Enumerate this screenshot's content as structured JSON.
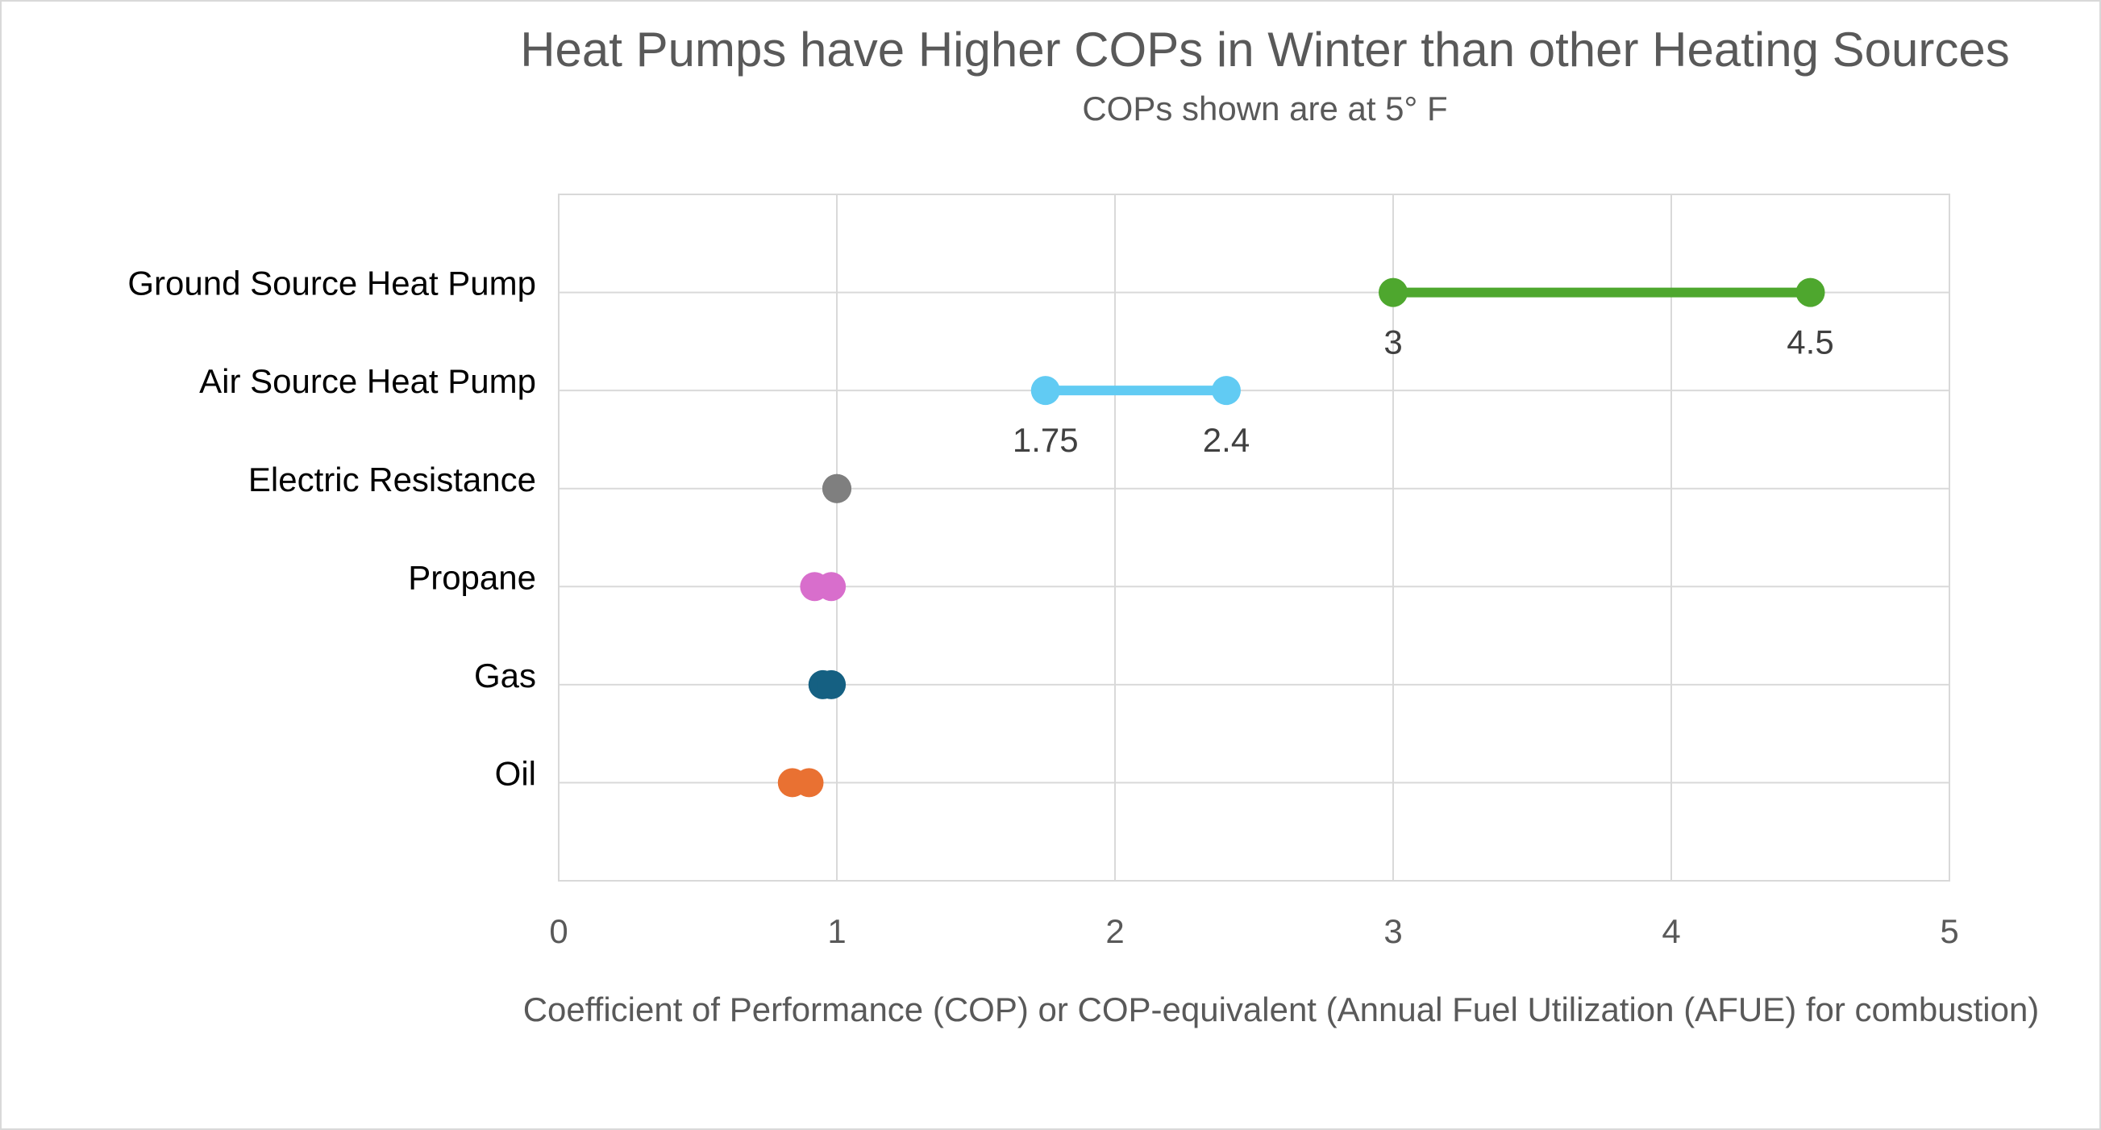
{
  "chart_data": {
    "type": "dumbbell",
    "title": "Heat Pumps have Higher COPs in Winter than other Heating Sources",
    "subtitle": "COPs shown are at 5° F",
    "x_label": "Coefficient of Performance (COP) or COP-equivalent (Annual Fuel Utilization (AFUE) for combustion)",
    "categories": [
      "Ground Source Heat Pump",
      "Air Source Heat Pump",
      "Electric Resistance",
      "Propane",
      "Gas",
      "Oil"
    ],
    "low": [
      3,
      1.75,
      1,
      0.92,
      0.95,
      0.84
    ],
    "high": [
      4.5,
      2.4,
      1,
      0.98,
      0.98,
      0.9
    ],
    "colors": [
      "#4ea72e",
      "#61cbf3",
      "#7f7f7f",
      "#d86ecc",
      "#156082",
      "#e97132"
    ],
    "show_labels": [
      true,
      true,
      false,
      false,
      false,
      false
    ],
    "xlim": [
      0,
      5
    ],
    "xticks": [
      0,
      1,
      2,
      3,
      4,
      5
    ],
    "grid": true
  }
}
